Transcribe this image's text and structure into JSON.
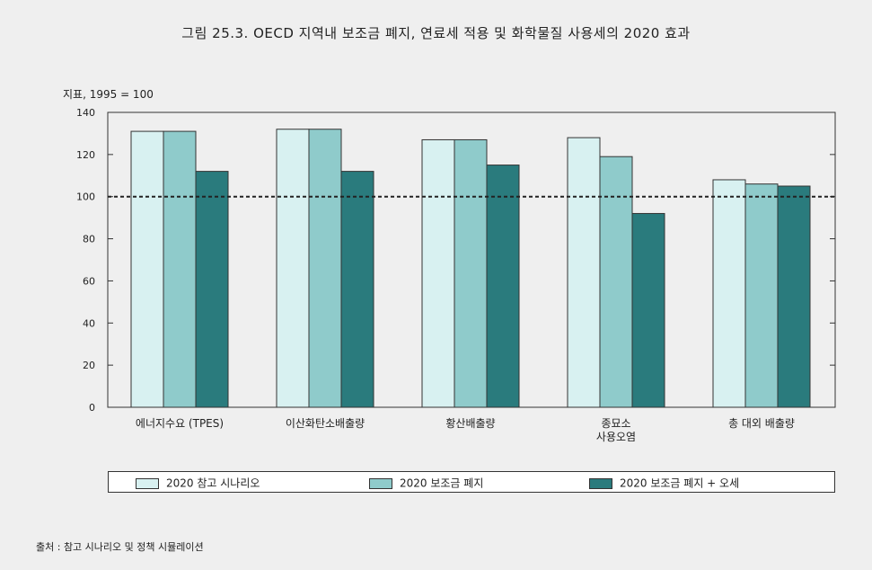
{
  "title": "그림 25.3. OECD 지역내 보조금 폐지, 연료세 적용 및 화학물질 사용세의 2020 효과",
  "source": "출처 : 참고 시나리오 및 정책 시뮬레이션",
  "colors": {
    "series": [
      "#d8f1f1",
      "#8fcbcb",
      "#2a7b7d"
    ],
    "frame": "#333333",
    "background": "#efefef"
  },
  "chart_data": {
    "type": "bar",
    "ylabel": "지표, 1995 = 100",
    "ylim": [
      0,
      140
    ],
    "yticks": [
      0,
      20,
      40,
      60,
      80,
      100,
      120,
      140
    ],
    "reference_line": 100,
    "categories": [
      [
        "에너지수요 (TPES)"
      ],
      [
        "이산화탄소배출량"
      ],
      [
        "황산배출량"
      ],
      [
        "종묘소",
        "사용오염"
      ],
      [
        "총 대외 배출량"
      ]
    ],
    "series": [
      {
        "name": "2020 참고 시나리오",
        "values": [
          131,
          132,
          127,
          128,
          108
        ]
      },
      {
        "name": "2020 보조금 폐지",
        "values": [
          131,
          132,
          127,
          119,
          106
        ]
      },
      {
        "name": "2020 보조금 폐지 + 오세",
        "values": [
          112,
          112,
          115,
          92,
          105
        ]
      }
    ],
    "grid": false,
    "legend_position": "bottom"
  }
}
